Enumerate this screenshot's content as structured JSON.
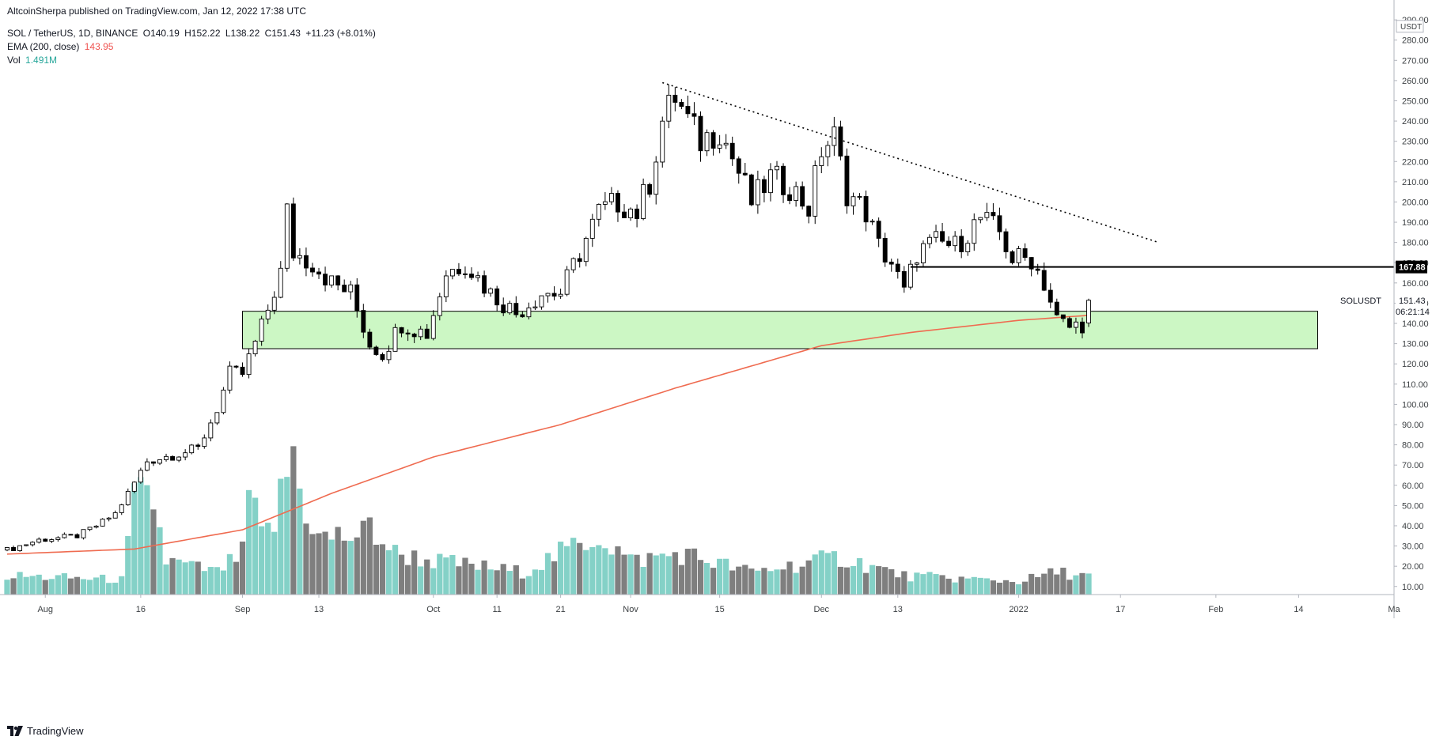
{
  "header": {
    "publish_line": "AltcoinSherpa published on TradingView.com, Jan 12, 2022 17:38 UTC"
  },
  "legend": {
    "symbol": "SOL / TetherUS, 1D, BINANCE",
    "open": "O140.19",
    "high": "H152.22",
    "low": "L138.22",
    "close": "C151.43",
    "change": "+11.23 (+8.01%)",
    "ema_label": "EMA (200, close)",
    "ema_value": "143.95",
    "vol_label": "Vol",
    "vol_value": "1.491M"
  },
  "footer": {
    "brand": "TradingView"
  },
  "colors": {
    "up_body": "#ffffff",
    "down_body": "#000000",
    "candle_outline": "#000000",
    "ema": "#ef6b50",
    "vol_up": "#84d1c7",
    "vol_down": "#7f7f7f",
    "zone_fill": "#ccf7c4",
    "zone_border": "#000000",
    "axis_text": "#3c4043"
  },
  "chart_data": {
    "type": "candlestick",
    "symbol": "SOLUSDT",
    "interval": "1D",
    "y_axis": {
      "unit": "USDT",
      "ticks": [
        10,
        20,
        30,
        40,
        50,
        60,
        70,
        80,
        90,
        100,
        110,
        120,
        130,
        140,
        150,
        160,
        170,
        180,
        190,
        200,
        210,
        220,
        230,
        240,
        250,
        260,
        270,
        280,
        290
      ],
      "range": [
        6,
        292
      ]
    },
    "x_axis": {
      "start_date": "2021-07-26",
      "end_date": "2022-03-01",
      "labels": [
        {
          "date": "2021-08-01",
          "label": "Aug"
        },
        {
          "date": "2021-08-16",
          "label": "16"
        },
        {
          "date": "2021-09-01",
          "label": "Sep"
        },
        {
          "date": "2021-09-13",
          "label": "13"
        },
        {
          "date": "2021-10-01",
          "label": "Oct"
        },
        {
          "date": "2021-10-11",
          "label": "11"
        },
        {
          "date": "2021-10-21",
          "label": "21"
        },
        {
          "date": "2021-11-01",
          "label": "Nov"
        },
        {
          "date": "2021-11-15",
          "label": "15"
        },
        {
          "date": "2021-12-01",
          "label": "Dec"
        },
        {
          "date": "2021-12-13",
          "label": "13"
        },
        {
          "date": "2022-01-01",
          "label": "2022"
        },
        {
          "date": "2022-01-17",
          "label": "17"
        },
        {
          "date": "2022-02-01",
          "label": "Feb"
        },
        {
          "date": "2022-02-14",
          "label": "14"
        },
        {
          "date": "2022-03-01",
          "label": "Ma"
        }
      ]
    },
    "price_labels": {
      "horizontal_line": "167.88",
      "last_price": "151.43",
      "last_symbol": "SOLUSDT",
      "countdown": "06:21:14"
    },
    "close_waypoints": [
      [
        "2021-07-26",
        28
      ],
      [
        "2021-07-31",
        33
      ],
      [
        "2021-08-06",
        35
      ],
      [
        "2021-08-09",
        40
      ],
      [
        "2021-08-12",
        46
      ],
      [
        "2021-08-14",
        56
      ],
      [
        "2021-08-17",
        72
      ],
      [
        "2021-08-21",
        75
      ],
      [
        "2021-08-25",
        78
      ],
      [
        "2021-08-28",
        98
      ],
      [
        "2021-08-30",
        115
      ],
      [
        "2021-09-01",
        115
      ],
      [
        "2021-09-04",
        138
      ],
      [
        "2021-09-07",
        165
      ],
      [
        "2021-09-08",
        195
      ],
      [
        "2021-09-09",
        175
      ],
      [
        "2021-09-12",
        170
      ],
      [
        "2021-09-15",
        160
      ],
      [
        "2021-09-18",
        155
      ],
      [
        "2021-09-21",
        130
      ],
      [
        "2021-09-23",
        125
      ],
      [
        "2021-09-26",
        140
      ],
      [
        "2021-09-30",
        135
      ],
      [
        "2021-10-03",
        165
      ],
      [
        "2021-10-06",
        170
      ],
      [
        "2021-10-10",
        155
      ],
      [
        "2021-10-14",
        145
      ],
      [
        "2021-10-18",
        155
      ],
      [
        "2021-10-21",
        155
      ],
      [
        "2021-10-24",
        175
      ],
      [
        "2021-10-27",
        195
      ],
      [
        "2021-10-30",
        200
      ],
      [
        "2021-11-02",
        195
      ],
      [
        "2021-11-04",
        210
      ],
      [
        "2021-11-06",
        240
      ],
      [
        "2021-11-08",
        252
      ],
      [
        "2021-11-10",
        240
      ],
      [
        "2021-11-12",
        230
      ],
      [
        "2021-11-15",
        236
      ],
      [
        "2021-11-17",
        222
      ],
      [
        "2021-11-20",
        200
      ],
      [
        "2021-11-23",
        212
      ],
      [
        "2021-11-26",
        208
      ],
      [
        "2021-11-29",
        197
      ],
      [
        "2021-12-01",
        226
      ],
      [
        "2021-12-03",
        232
      ],
      [
        "2021-12-05",
        205
      ],
      [
        "2021-12-08",
        195
      ],
      [
        "2021-12-10",
        178
      ],
      [
        "2021-12-12",
        170
      ],
      [
        "2021-12-14",
        155
      ],
      [
        "2021-12-16",
        175
      ],
      [
        "2021-12-19",
        180
      ],
      [
        "2021-12-22",
        178
      ],
      [
        "2021-12-26",
        192
      ],
      [
        "2021-12-29",
        185
      ],
      [
        "2021-12-31",
        172
      ],
      [
        "2022-01-03",
        172
      ],
      [
        "2022-01-05",
        160
      ],
      [
        "2022-01-07",
        142
      ],
      [
        "2022-01-09",
        138
      ],
      [
        "2022-01-11",
        140
      ],
      [
        "2022-01-12",
        151
      ]
    ],
    "ema_waypoints": [
      [
        "2021-07-26",
        26
      ],
      [
        "2021-08-15",
        28.5
      ],
      [
        "2021-09-01",
        38
      ],
      [
        "2021-09-15",
        56
      ],
      [
        "2021-10-01",
        74
      ],
      [
        "2021-10-21",
        90
      ],
      [
        "2021-11-08",
        108
      ],
      [
        "2021-12-01",
        129
      ],
      [
        "2021-12-15",
        135.5
      ],
      [
        "2022-01-01",
        141.5
      ],
      [
        "2022-01-12",
        144
      ]
    ],
    "volume_waypoints": [
      [
        "2021-07-26",
        10
      ],
      [
        "2021-08-13",
        8
      ],
      [
        "2021-08-14",
        25
      ],
      [
        "2021-08-15",
        50
      ],
      [
        "2021-08-18",
        50
      ],
      [
        "2021-08-20",
        18
      ],
      [
        "2021-08-28",
        12
      ],
      [
        "2021-09-01",
        22
      ],
      [
        "2021-09-02",
        54
      ],
      [
        "2021-09-04",
        30
      ],
      [
        "2021-09-06",
        38
      ],
      [
        "2021-09-09",
        78
      ],
      [
        "2021-09-10",
        55
      ],
      [
        "2021-09-13",
        30
      ],
      [
        "2021-09-20",
        32
      ],
      [
        "2021-09-21",
        36
      ],
      [
        "2021-09-25",
        22
      ],
      [
        "2021-10-01",
        18
      ],
      [
        "2021-10-15",
        12
      ],
      [
        "2021-10-27",
        32
      ],
      [
        "2021-11-01",
        18
      ],
      [
        "2021-11-09",
        22
      ],
      [
        "2021-11-20",
        12
      ],
      [
        "2021-12-04",
        20
      ],
      [
        "2021-12-14",
        10
      ],
      [
        "2022-01-01",
        7
      ],
      [
        "2022-01-07",
        12
      ],
      [
        "2022-01-12",
        10
      ]
    ],
    "levels": {
      "support_zone": {
        "from_date": "2021-09-01",
        "to_date": "2022-02-17",
        "low": 127.5,
        "high": 146
      },
      "resistance_line": {
        "from_date": "2021-12-15",
        "to_date": "2022-03-01",
        "price": 167.88
      },
      "trendline": {
        "from_date": "2021-11-06",
        "from_price": 259,
        "to_date": "2022-01-23",
        "to_price": 180
      }
    }
  }
}
